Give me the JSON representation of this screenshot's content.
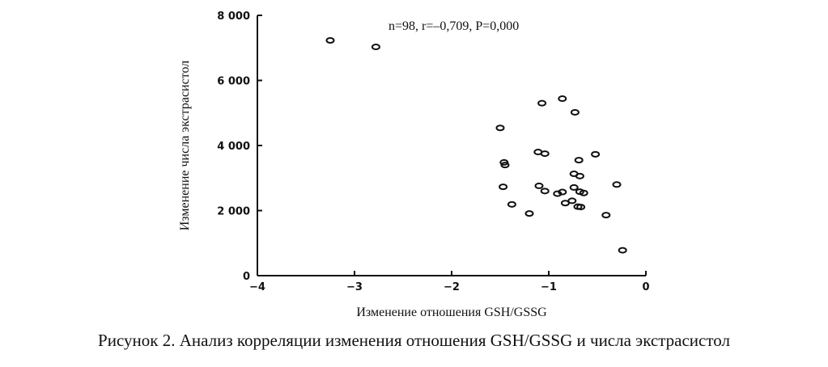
{
  "caption": "Рисунок 2. Анализ корреляции изменения отношения GSH/GSSG и числа экстрасистол",
  "chart_data": {
    "type": "scatter",
    "title": "",
    "annotation": "n=98, r=–0,709, P=0,000",
    "xlabel": "Изменение отношения GSH/GSSG",
    "ylabel": "Изменение числа экстрасистол",
    "xlim": [
      -4,
      0
    ],
    "ylim": [
      0,
      8000
    ],
    "x_ticks": [
      -4,
      -3,
      -2,
      -1,
      0
    ],
    "x_tick_labels": [
      "−4",
      "−3",
      "−2",
      "−1",
      "0"
    ],
    "y_ticks": [
      0,
      2000,
      4000,
      6000,
      8000
    ],
    "y_tick_labels": [
      "0",
      "2 000",
      "4 000",
      "6 000",
      "8 000"
    ],
    "grid": false,
    "marker": "open-circle",
    "points": [
      {
        "x": -3.25,
        "y": 7230
      },
      {
        "x": -2.78,
        "y": 7030
      },
      {
        "x": -0.86,
        "y": 5440
      },
      {
        "x": -1.07,
        "y": 5300
      },
      {
        "x": -0.73,
        "y": 5020
      },
      {
        "x": -1.5,
        "y": 4540
      },
      {
        "x": -1.11,
        "y": 3800
      },
      {
        "x": -1.04,
        "y": 3750
      },
      {
        "x": -0.52,
        "y": 3730
      },
      {
        "x": -0.69,
        "y": 3550
      },
      {
        "x": -1.46,
        "y": 3480
      },
      {
        "x": -1.45,
        "y": 3400
      },
      {
        "x": -0.74,
        "y": 3130
      },
      {
        "x": -0.68,
        "y": 3060
      },
      {
        "x": -1.47,
        "y": 2730
      },
      {
        "x": -1.1,
        "y": 2760
      },
      {
        "x": -0.74,
        "y": 2710
      },
      {
        "x": -0.3,
        "y": 2800
      },
      {
        "x": -1.04,
        "y": 2600
      },
      {
        "x": -0.91,
        "y": 2520
      },
      {
        "x": -0.86,
        "y": 2570
      },
      {
        "x": -0.68,
        "y": 2580
      },
      {
        "x": -0.64,
        "y": 2540
      },
      {
        "x": -0.76,
        "y": 2300
      },
      {
        "x": -0.83,
        "y": 2230
      },
      {
        "x": -1.38,
        "y": 2190
      },
      {
        "x": -0.7,
        "y": 2120
      },
      {
        "x": -0.67,
        "y": 2110
      },
      {
        "x": -1.2,
        "y": 1910
      },
      {
        "x": -0.41,
        "y": 1860
      },
      {
        "x": -0.24,
        "y": 780
      }
    ]
  }
}
